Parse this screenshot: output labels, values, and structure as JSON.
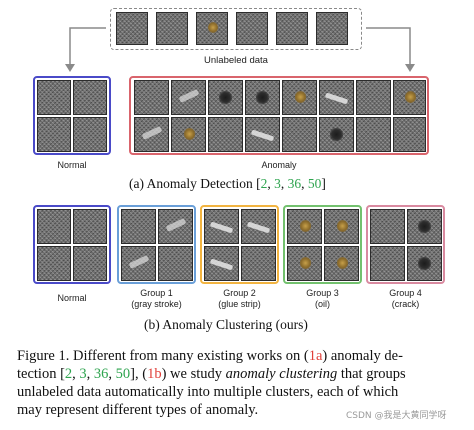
{
  "figure": {
    "unlabeled_label": "Unlabeled data",
    "panel_a": {
      "normal_label": "Normal",
      "anomaly_label": "Anomaly",
      "caption_prefix": "(a) Anomaly Detection [",
      "refs": [
        "2",
        ", ",
        "3",
        ", ",
        "36",
        ", ",
        "50"
      ],
      "caption_suffix": "]"
    },
    "panel_b": {
      "normal_label": "Normal",
      "groups": [
        {
          "title": "Group 1",
          "subtitle": "(gray stroke)",
          "color": "#6a9fd8"
        },
        {
          "title": "Group 2",
          "subtitle": "(glue strip)",
          "color": "#f2b441"
        },
        {
          "title": "Group 3",
          "subtitle": "(oil)",
          "color": "#73c16e"
        },
        {
          "title": "Group 4",
          "subtitle": "(crack)",
          "color": "#d98aa0"
        }
      ],
      "caption": "(b) Anomaly Clustering (ours)"
    },
    "colors": {
      "normal_box": "#4a4ac8",
      "anomaly_box": "#d9646c",
      "arrow": "#8a8a8a"
    }
  },
  "caption": {
    "line1_a": "Figure 1. Different from many existing works on (",
    "line1_ref": "1a",
    "line1_b": ") anomaly de-",
    "line2_a": "tection [",
    "line2_refs": [
      "2",
      ", ",
      "3",
      ", ",
      "36",
      ", ",
      "50"
    ],
    "line2_b": "], (",
    "line2_ref": "1b",
    "line2_c": ") we study ",
    "line2_em": "anomaly clustering",
    "line2_d": " that groups",
    "line3": "unlabeled data automatically into multiple clusters, each of which",
    "line4": "may represent different types of anomaly."
  },
  "watermark": "CSDN @我是大黄同学呀"
}
